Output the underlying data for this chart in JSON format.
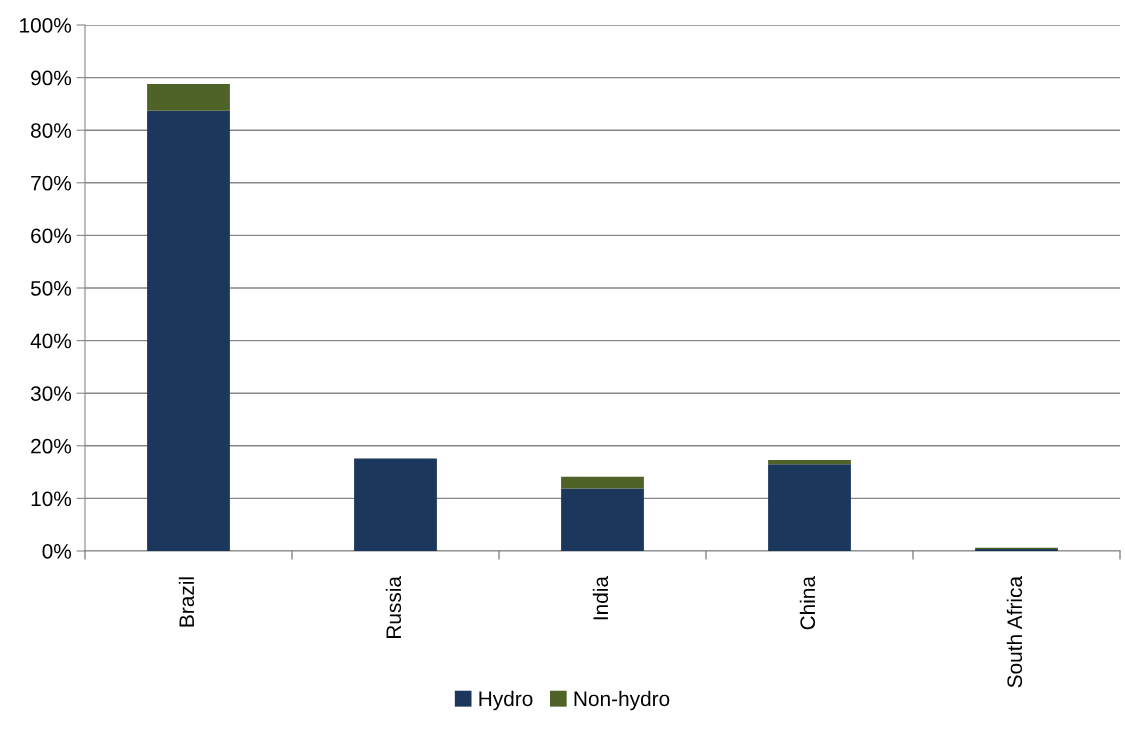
{
  "chart_data": {
    "type": "bar",
    "stacked": true,
    "categories": [
      "Brazil",
      "Russia",
      "India",
      "China",
      "South Africa"
    ],
    "series": [
      {
        "name": "Hydro",
        "color": "#1b375c",
        "values": [
          83.7,
          17.6,
          11.9,
          16.5,
          0.4
        ]
      },
      {
        "name": "Non-hydro",
        "color": "#4f6228",
        "values": [
          5.1,
          null,
          2.2,
          0.8,
          0.2
        ]
      }
    ],
    "ylim": [
      0,
      100
    ],
    "yticks": [
      {
        "value": 0,
        "label": "0%"
      },
      {
        "value": 10,
        "label": "10%"
      },
      {
        "value": 20,
        "label": "20%"
      },
      {
        "value": 30,
        "label": "30%"
      },
      {
        "value": 40,
        "label": "40%"
      },
      {
        "value": 50,
        "label": "50%"
      },
      {
        "value": 60,
        "label": "60%"
      },
      {
        "value": 70,
        "label": "70%"
      },
      {
        "value": 80,
        "label": "80%"
      },
      {
        "value": 90,
        "label": "90%"
      },
      {
        "value": 100,
        "label": "100%"
      }
    ],
    "grid": "y",
    "legend": "bottom"
  }
}
